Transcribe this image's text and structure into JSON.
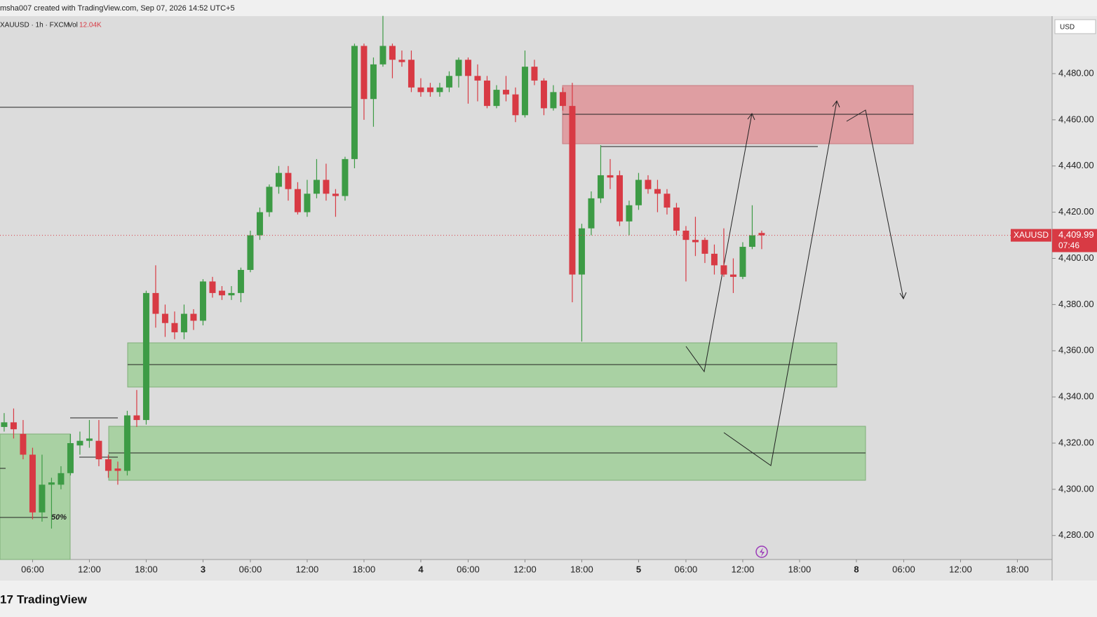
{
  "header": {
    "credit": "msha007 created with TradingView.com, Sep 07, 2026 14:52 UTC+5"
  },
  "chart_data": {
    "type": "candlestick",
    "symbol": "XAUUSD · 1h · FXCM",
    "volume_label": "Vol",
    "volume_value": "12.04K",
    "currency": "USD",
    "price_tag_symbol": "XAUUSD",
    "last_price": 4409.99,
    "last_price_label": "4,409.99",
    "countdown": "07:46",
    "annotation": "50%",
    "up_color": "#3d9b45",
    "down_color": "#d83a44",
    "open": [
      4327,
      4329,
      4324,
      4315,
      4290,
      4302,
      4302,
      4307,
      4319,
      4321,
      4321,
      4313,
      4309,
      4308,
      4332,
      4330,
      4385,
      4376,
      4372,
      4368,
      4376,
      4373,
      4390,
      4386,
      4384,
      4385,
      4395,
      4410,
      4420,
      4431,
      4437,
      4430,
      4420,
      4428,
      4434,
      4428,
      4427,
      4443,
      4492,
      4469,
      4484,
      4492,
      4486,
      4486,
      4474,
      4474,
      4472,
      4474,
      4479,
      4486,
      4479,
      4477,
      4466,
      4473,
      4471,
      4462,
      4483,
      4477,
      4465,
      4472,
      4466,
      4393,
      4413,
      4426,
      4436,
      4436,
      4416,
      4423,
      4434,
      4430,
      4428,
      4422,
      4412,
      4408,
      4408,
      4402,
      4397,
      4393,
      4392,
      4405,
      4411
    ],
    "high": [
      4333,
      4335,
      4330,
      4318,
      4315,
      4305,
      4310,
      4324,
      4325,
      4330,
      4330,
      4315,
      4312,
      4334,
      4343,
      4386,
      4397,
      4380,
      4377,
      4380,
      4378,
      4391,
      4392,
      4388,
      4388,
      4396,
      4412,
      4422,
      4432,
      4440,
      4440,
      4433,
      4434,
      4443,
      4441,
      4430,
      4444,
      4493,
      4493,
      4487,
      4505,
      4493,
      4490,
      4490,
      4478,
      4476,
      4476,
      4481,
      4487,
      4487,
      4484,
      4479,
      4475,
      4479,
      4474,
      4490,
      4486,
      4478,
      4475,
      4474,
      4476,
      4415,
      4429,
      4449,
      4443,
      4438,
      4425,
      4437,
      4436,
      4434,
      4430,
      4424,
      4414,
      4418,
      4409,
      4406,
      4413,
      4400,
      4407,
      4423,
      4412
    ],
    "low": [
      4325,
      4322,
      4313,
      4287,
      4286,
      4283,
      4300,
      4306,
      4315,
      4318,
      4310,
      4305,
      4302,
      4306,
      4327,
      4328,
      4370,
      4366,
      4365,
      4365,
      4369,
      4371,
      4383,
      4382,
      4382,
      4381,
      4394,
      4408,
      4418,
      4428,
      4425,
      4419,
      4418,
      4426,
      4425,
      4418,
      4425,
      4439,
      4460,
      4457,
      4483,
      4478,
      4483,
      4472,
      4470,
      4470,
      4470,
      4472,
      4474,
      4467,
      4468,
      4465,
      4465,
      4468,
      4459,
      4461,
      4475,
      4462,
      4464,
      4464,
      4381,
      4364,
      4410,
      4424,
      4430,
      4414,
      4410,
      4421,
      4428,
      4420,
      4419,
      4410,
      4390,
      4401,
      4398,
      4393,
      4392,
      4385,
      4391,
      4404,
      4404
    ],
    "close": [
      4329,
      4326,
      4315,
      4290,
      4302,
      4303,
      4307,
      4320,
      4321,
      4322,
      4313,
      4308,
      4308,
      4332,
      4330,
      4385,
      4376,
      4372,
      4368,
      4376,
      4373,
      4390,
      4385,
      4384,
      4385,
      4395,
      4410,
      4420,
      4431,
      4437,
      4430,
      4420,
      4428,
      4434,
      4428,
      4427,
      4443,
      4492,
      4469,
      4484,
      4492,
      4486,
      4485,
      4474,
      4472,
      4472,
      4474,
      4479,
      4486,
      4479,
      4477,
      4466,
      4473,
      4471,
      4462,
      4483,
      4477,
      4465,
      4472,
      4466,
      4393,
      4413,
      4426,
      4436,
      4435,
      4416,
      4423,
      4434,
      4430,
      4428,
      4422,
      4412,
      4408,
      4407,
      4402,
      4397,
      4393,
      4392,
      4405,
      4410,
      4409.99
    ],
    "ylim": [
      4269.6,
      4504.9
    ],
    "yticks": [
      {
        "value": 4280,
        "label": "4,280.00"
      },
      {
        "value": 4300,
        "label": "4,300.00"
      },
      {
        "value": 4320,
        "label": "4,320.00"
      },
      {
        "value": 4340,
        "label": "4,340.00"
      },
      {
        "value": 4360,
        "label": "4,360.00"
      },
      {
        "value": 4380,
        "label": "4,380.00"
      },
      {
        "value": 4400,
        "label": "4,400.00"
      },
      {
        "value": 4420,
        "label": "4,420.00"
      },
      {
        "value": 4440,
        "label": "4,440.00"
      },
      {
        "value": 4460,
        "label": "4,460.00"
      },
      {
        "value": 4480,
        "label": "4,480.00"
      }
    ],
    "xlim": [
      -0.44,
      110.67
    ],
    "xticks": [
      {
        "value": 3,
        "label": "06:00"
      },
      {
        "value": 9,
        "label": "12:00"
      },
      {
        "value": 15,
        "label": "18:00"
      },
      {
        "value": 21,
        "label": "3"
      },
      {
        "value": 26,
        "label": "06:00"
      },
      {
        "value": 32,
        "label": "12:00"
      },
      {
        "value": 38,
        "label": "18:00"
      },
      {
        "value": 44,
        "label": "4"
      },
      {
        "value": 49,
        "label": "06:00"
      },
      {
        "value": 55,
        "label": "12:00"
      },
      {
        "value": 61,
        "label": "18:00"
      },
      {
        "value": 67,
        "label": "5"
      },
      {
        "value": 72,
        "label": "06:00"
      },
      {
        "value": 78,
        "label": "12:00"
      },
      {
        "value": 84,
        "label": "18:00"
      },
      {
        "value": 90,
        "label": "8"
      },
      {
        "value": 95,
        "label": "06:00"
      },
      {
        "value": 101,
        "label": "12:00"
      },
      {
        "value": 107,
        "label": "18:00"
      }
    ]
  },
  "footer": {
    "brand": "TradingView"
  }
}
